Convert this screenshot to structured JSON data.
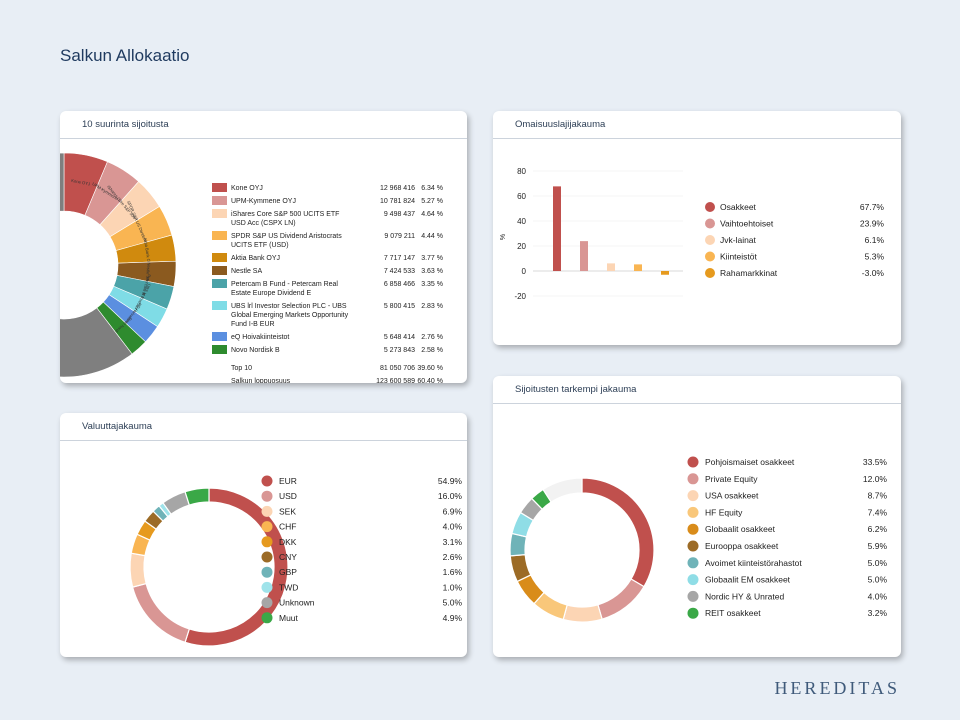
{
  "page": {
    "title": "Salkun Allokaatio",
    "brand": "HEREDITAS"
  },
  "panels": {
    "top10": {
      "title": "10 suurinta sijoitusta"
    },
    "assets": {
      "title": "Omaisuuslajijakauma"
    },
    "currency": {
      "title": "Valuuttajakauma"
    },
    "detail": {
      "title": "Sijoitusten tarkempi jakauma"
    }
  },
  "top10_table": {
    "rows": [
      {
        "name": [
          "Kone OYJ"
        ],
        "value": "12 968 416",
        "pct": "6.34 %",
        "color": "#c0504d"
      },
      {
        "name": [
          "UPM-Kymmene OYJ"
        ],
        "value": "10 781 824",
        "pct": "5.27 %",
        "color": "#d99694"
      },
      {
        "name": [
          "iShares Core S&P 500 UCITS ETF",
          "USD Acc (CSPX LN)"
        ],
        "value": "9 498 437",
        "pct": "4.64 %",
        "color": "#fcd5b4"
      },
      {
        "name": [
          "SPDR S&P US Dividend Aristocrats",
          "UCITS ETF (USD)"
        ],
        "value": "9 079 211",
        "pct": "4.44 %",
        "color": "#f9b552"
      },
      {
        "name": [
          "Aktia Bank OYJ"
        ],
        "value": "7 717 147",
        "pct": "3.77 %",
        "color": "#d08a0e"
      },
      {
        "name": [
          "Nestle SA"
        ],
        "value": "7 424 533",
        "pct": "3.63 %",
        "color": "#8b5a1f"
      },
      {
        "name": [
          "Petercam B Fund - Petercam Real",
          "Estate Europe Dividend E"
        ],
        "value": "6 858 466",
        "pct": "3.35 %",
        "color": "#4ba3a8"
      },
      {
        "name": [
          "UBS lrl Investor Selection PLC - UBS",
          "Global Emerging Markets Opportunity",
          "Fund I-B EUR"
        ],
        "value": "5 800 415",
        "pct": "2.83 %",
        "color": "#7fdce6"
      },
      {
        "name": [
          "eQ Hoivakiinteistot"
        ],
        "value": "5 648 414",
        "pct": "2.76 %",
        "color": "#5b8fe0"
      },
      {
        "name": [
          "Novo Nordisk B"
        ],
        "value": "5 273 843",
        "pct": "2.58 %",
        "color": "#2e8b2e"
      }
    ],
    "totals": [
      {
        "name": "Top 10",
        "value": "81 050 706",
        "pct": "39.60 %"
      },
      {
        "name": "Salkun loppuosuus",
        "value": "123 600 589",
        "pct": "60.40 %"
      }
    ],
    "donut_labels": [
      "Kone OYJ",
      "UPM-Kymmene OYJ",
      "iShares Core S&P 500 UCITS ETF",
      "SPDR S&P US Dividend Aristocrats",
      "Aktia Bank OYJ",
      "Nestle SA",
      "Petercam B Fund",
      "UBS lrl Investor Selection",
      "eQ Hoivakiinteistot",
      "Novo Nordisk B"
    ],
    "rest_color": "#7f7f7f"
  },
  "chart_data": [
    {
      "type": "pie",
      "title": "10 suurinta sijoitusta",
      "labels": [
        "Kone OYJ",
        "UPM-Kymmene OYJ",
        "iShares Core S&P 500 UCITS ETF USD Acc (CSPX LN)",
        "SPDR S&P US Dividend Aristocrats UCITS ETF (USD)",
        "Aktia Bank OYJ",
        "Nestle SA",
        "Petercam B Fund - Petercam Real Estate Europe Dividend E",
        "UBS lrl Investor Selection PLC - UBS Global Emerging Markets Opportunity Fund I-B EUR",
        "eQ Hoivakiinteistot",
        "Novo Nordisk B",
        "Salkun loppuosuus"
      ],
      "values": [
        6.34,
        5.27,
        4.64,
        4.44,
        3.77,
        3.63,
        3.35,
        2.83,
        2.76,
        2.58,
        60.4
      ]
    },
    {
      "type": "bar",
      "title": "Omaisuuslajijakauma",
      "ylabel": "%",
      "ylim": [
        -20,
        80
      ],
      "yticks": [
        "80",
        "60",
        "40",
        "20",
        "0",
        "-20"
      ],
      "categories": [
        "Osakkeet",
        "Vaihtoehtoiset",
        "Jvk-lainat",
        "Kiinteistöt",
        "Rahamarkkinat"
      ],
      "values": [
        67.7,
        23.9,
        6.1,
        5.3,
        -3.0
      ],
      "labels": [
        "67.7%",
        "23.9%",
        "6.1%",
        "5.3%",
        "-3.0%"
      ],
      "colors": [
        "#c0504d",
        "#d99694",
        "#fcd5b4",
        "#f9b552",
        "#e69a1e"
      ]
    },
    {
      "type": "pie",
      "title": "Valuuttajakauma",
      "categories": [
        "EUR",
        "USD",
        "SEK",
        "CHF",
        "DKK",
        "CNY",
        "GBP",
        "TWD",
        "Unknown",
        "Muut"
      ],
      "values": [
        54.9,
        16.0,
        6.9,
        4.0,
        3.1,
        2.6,
        1.6,
        1.0,
        5.0,
        4.9
      ],
      "labels": [
        "54.9%",
        "16.0%",
        "6.9%",
        "4.0%",
        "3.1%",
        "2.6%",
        "1.6%",
        "1.0%",
        "5.0%",
        "4.9%"
      ],
      "colors": [
        "#c0504d",
        "#d99694",
        "#fcd5b4",
        "#f9b552",
        "#e69a1e",
        "#9c6b26",
        "#6fb3b8",
        "#9fe3ea",
        "#a6a6a6",
        "#3aa847"
      ]
    },
    {
      "type": "pie",
      "title": "Sijoitusten tarkempi jakauma",
      "categories": [
        "Pohjoismaiset osakkeet",
        "Private Equity",
        "USA osakkeet",
        "HF Equity",
        "Globaalit osakkeet",
        "Eurooppa osakkeet",
        "Avoimet kiinteistörahastot",
        "Globaalit EM osakkeet",
        "Nordic HY & Unrated",
        "REIT osakkeet"
      ],
      "values": [
        33.5,
        12.0,
        8.7,
        7.4,
        6.2,
        5.9,
        5.0,
        5.0,
        4.0,
        3.2
      ],
      "labels": [
        "33.5%",
        "12.0%",
        "8.7%",
        "7.4%",
        "6.2%",
        "5.9%",
        "5.0%",
        "5.0%",
        "4.0%",
        "3.2%"
      ],
      "colors": [
        "#c0504d",
        "#d99694",
        "#fcd5b4",
        "#f9c77a",
        "#d98c1a",
        "#9c6b26",
        "#6fb3b8",
        "#8fdde6",
        "#a6a6a6",
        "#3aa847"
      ],
      "rest_color": "#f2f2f2"
    }
  ]
}
